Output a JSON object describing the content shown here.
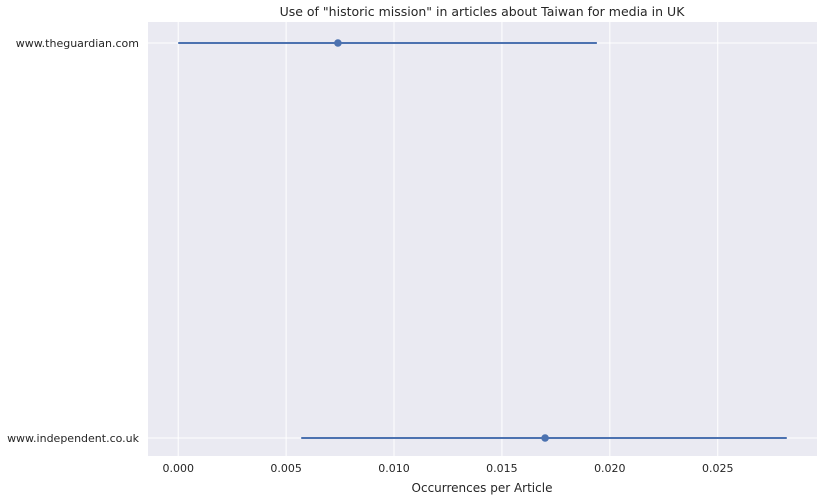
{
  "chart_data": {
    "type": "pointplot",
    "title": "Use of \"historic mission\" in articles about Taiwan for media in UK",
    "xlabel": "Occurrences per Article",
    "ylabel": "",
    "xlim": [
      -0.0014,
      0.0296
    ],
    "x_ticks": [
      0.0,
      0.005,
      0.01,
      0.015,
      0.02,
      0.025
    ],
    "x_tick_labels": [
      "0.000",
      "0.005",
      "0.010",
      "0.015",
      "0.020",
      "0.025"
    ],
    "categories": [
      "www.theguardian.com",
      "www.independent.co.uk"
    ],
    "points": [
      {
        "category": "www.theguardian.com",
        "value": 0.0074,
        "ci_low": 0.0,
        "ci_high": 0.0194
      },
      {
        "category": "www.independent.co.uk",
        "value": 0.017,
        "ci_low": 0.0057,
        "ci_high": 0.0282
      }
    ],
    "grid": true,
    "colors": {
      "background": "#eaeaf2",
      "grid": "#ffffff",
      "series": "#4c72b0",
      "text": "#262626"
    }
  }
}
